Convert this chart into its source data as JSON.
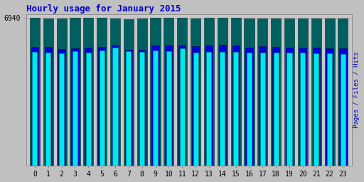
{
  "title": "Hourly usage for January 2015",
  "hours": [
    0,
    1,
    2,
    3,
    4,
    5,
    6,
    7,
    8,
    9,
    10,
    11,
    12,
    13,
    14,
    15,
    16,
    17,
    18,
    19,
    20,
    21,
    22,
    23
  ],
  "hits": [
    6910,
    6900,
    6890,
    6915,
    6915,
    6940,
    6905,
    6870,
    6875,
    6925,
    6925,
    6940,
    6900,
    6940,
    6930,
    6920,
    6905,
    6905,
    6905,
    6900,
    6895,
    6895,
    6900,
    6880
  ],
  "files": [
    5560,
    5550,
    5460,
    5490,
    5530,
    5570,
    5620,
    5440,
    5440,
    5620,
    5610,
    5620,
    5590,
    5640,
    5660,
    5630,
    5530,
    5590,
    5560,
    5530,
    5510,
    5510,
    5500,
    5480
  ],
  "pages": [
    5310,
    5280,
    5260,
    5350,
    5300,
    5380,
    5510,
    5360,
    5330,
    5400,
    5370,
    5490,
    5290,
    5330,
    5330,
    5340,
    5290,
    5290,
    5290,
    5280,
    5280,
    5270,
    5270,
    5230
  ],
  "hits_color": "#006060",
  "files_color": "#0000dd",
  "pages_color": "#00e8e8",
  "bg_color": "#c0c0c0",
  "plot_bg_color": "#c8c8c8",
  "ylabel_right": "Pages / Files / Hits",
  "ylabel_right_color": "#0000cc",
  "title_color": "#0000cc",
  "ymin": 0,
  "ymax": 7100,
  "ytick_val": 6940,
  "bar_width": 0.75
}
